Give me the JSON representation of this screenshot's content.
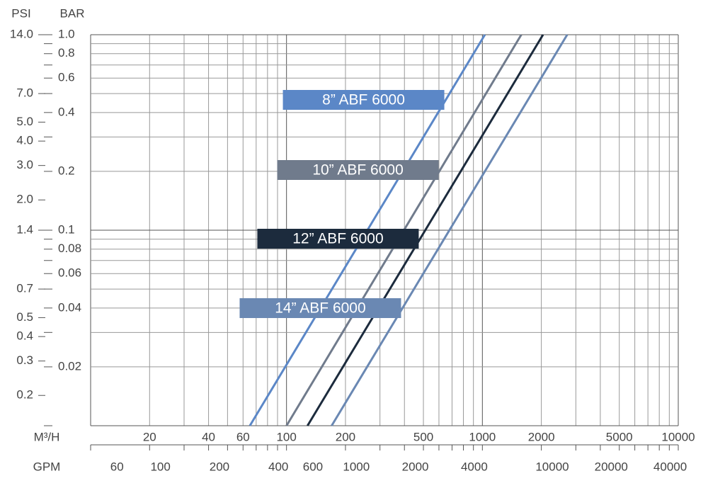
{
  "chart_data": {
    "type": "line",
    "y_label": "BAR",
    "y2_label": "PSI",
    "x_label": "M³/H",
    "x2_label": "GPM",
    "xlog": true,
    "ylog": true,
    "xlim": [
      10,
      10000
    ],
    "x2lim": [
      44,
      44000
    ],
    "ylim": [
      0.01,
      1
    ],
    "y2lim": [
      0.14,
      14
    ],
    "xticks": [
      20,
      40,
      60,
      100,
      200,
      500,
      1000,
      2000,
      5000,
      10000
    ],
    "x2ticks": [
      60,
      100,
      200,
      400,
      600,
      1000,
      2000,
      4000,
      10000,
      20000,
      40000
    ],
    "yticks": [
      {
        "value": 1,
        "label": "1.0"
      },
      0.8,
      0.6,
      0.4,
      0.2,
      0.1,
      0.08,
      0.06,
      0.04,
      0.02
    ],
    "y2ticks": [
      {
        "value": 14,
        "label": "14.0"
      },
      {
        "value": 7,
        "label": "7.0"
      },
      {
        "value": 5,
        "label": "5.0"
      },
      {
        "value": 4,
        "label": "4.0"
      },
      {
        "value": 3,
        "label": "3.0"
      },
      {
        "value": 2,
        "label": "2.0"
      },
      1.4,
      0.7,
      0.5,
      0.4,
      0.3,
      0.2
    ],
    "xgrid": [
      10,
      20,
      30,
      40,
      50,
      60,
      70,
      80,
      90,
      100,
      200,
      300,
      400,
      500,
      600,
      700,
      800,
      900,
      1000,
      2000,
      3000,
      4000,
      5000,
      6000,
      7000,
      8000,
      9000,
      10000
    ],
    "ygrid": [
      0.01,
      0.02,
      0.03,
      0.04,
      0.05,
      0.06,
      0.07,
      0.08,
      0.09,
      0.1,
      0.2,
      0.3,
      0.4,
      0.5,
      0.6,
      0.7,
      0.8,
      0.9,
      1
    ],
    "series": [
      {
        "name": "8” ABF 6000",
        "color": "#5b87c7",
        "x": [
          65,
          1030
        ],
        "values": [
          0.01,
          1
        ]
      },
      {
        "name": "10” ABF 6000",
        "color": "#707b8c",
        "x": [
          100,
          1580
        ],
        "values": [
          0.01,
          1
        ]
      },
      {
        "name": "12” ABF 6000",
        "color": "#1c2b3d",
        "x": [
          128,
          2040
        ],
        "values": [
          0.01,
          1
        ]
      },
      {
        "name": "14” ABF 6000",
        "color": "#6a88b3",
        "x": [
          170,
          2710
        ],
        "values": [
          0.01,
          1
        ]
      }
    ]
  }
}
